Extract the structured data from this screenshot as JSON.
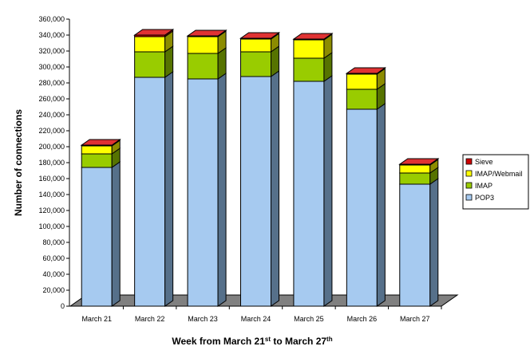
{
  "chart_data": {
    "type": "bar",
    "stacked": true,
    "three_d": true,
    "categories": [
      "March 21",
      "March 22",
      "March 23",
      "March 24",
      "March 25",
      "March 26",
      "March 27"
    ],
    "series": [
      {
        "name": "POP3",
        "color": "#a6caf0",
        "side_color": "#56708a",
        "top_color": "#c5ddf5",
        "values": [
          174000,
          287000,
          285000,
          288000,
          282000,
          247000,
          153000
        ]
      },
      {
        "name": "IMAP",
        "color": "#99cc00",
        "side_color": "#567300",
        "top_color": "#b5dc33",
        "values": [
          17000,
          32000,
          32000,
          31000,
          29000,
          25000,
          14000
        ]
      },
      {
        "name": "IMAP/Webmail",
        "color": "#ffff00",
        "side_color": "#8c8c00",
        "top_color": "#ffff66",
        "values": [
          10000,
          19000,
          21000,
          16000,
          23000,
          19000,
          10000
        ]
      },
      {
        "name": "Sieve",
        "color": "#cc0000",
        "side_color": "#800000",
        "top_color": "#e03333",
        "values": [
          1000,
          2000,
          1000,
          1000,
          1000,
          1000,
          1000
        ]
      }
    ],
    "legend_order": [
      "Sieve",
      "IMAP/Webmail",
      "IMAP",
      "POP3"
    ],
    "ylim": [
      0,
      360000
    ],
    "ytick_step": 20000,
    "ytick_labels": [
      "0",
      "20,000",
      "40,000",
      "60,000",
      "80,000",
      "100,000",
      "120,000",
      "140,000",
      "160,000",
      "180,000",
      "200,000",
      "220,000",
      "240,000",
      "260,000",
      "280,000",
      "300,000",
      "320,000",
      "340,000",
      "360,000"
    ],
    "ylabel": "Number of connections",
    "xlabel_parts": [
      {
        "text": "Week from March 21",
        "sup": false
      },
      {
        "text": "st",
        "sup": true
      },
      {
        "text": " to March 27",
        "sup": false
      },
      {
        "text": "th",
        "sup": true
      }
    ],
    "grid": false,
    "legend_position": "right"
  }
}
